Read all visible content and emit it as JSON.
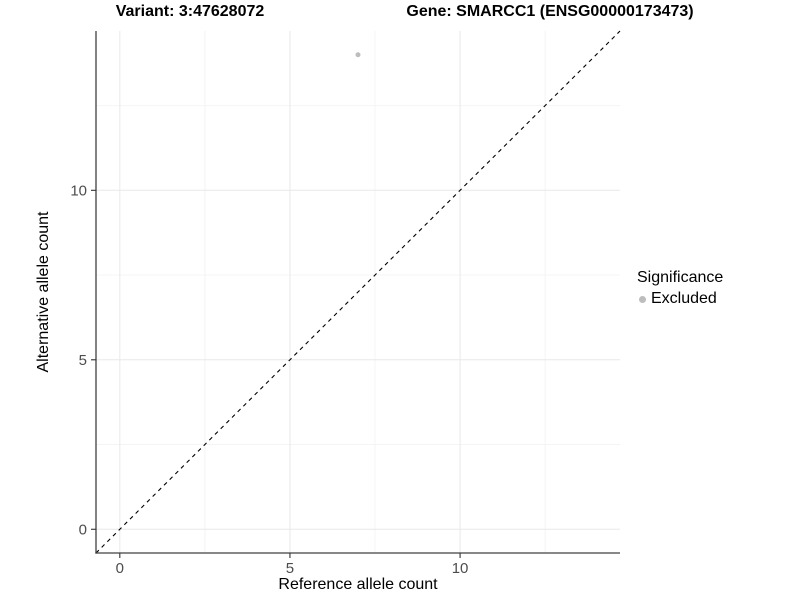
{
  "chart_data": {
    "type": "scatter",
    "titles": {
      "left": "Variant: 3:47628072",
      "right": "Gene: SMARCC1 (ENSG00000173473)"
    },
    "xlabel": "Reference allele count",
    "ylabel": "Alternative allele count",
    "xlim": [
      -0.7,
      14.7
    ],
    "ylim": [
      -0.7,
      14.7
    ],
    "x_ticks": {
      "major": [
        0,
        5,
        10
      ],
      "minor": [
        2.5,
        7.5,
        12.5
      ]
    },
    "y_ticks": {
      "major": [
        0,
        5,
        10
      ],
      "minor": [
        2.5,
        7.5,
        12.5
      ]
    },
    "grid": "major+minor",
    "reference_line": {
      "kind": "identity y=x",
      "dashed": true
    },
    "series": [
      {
        "name": "Excluded",
        "color": "#bdbdbd",
        "points": [
          [
            7,
            14
          ]
        ]
      }
    ],
    "legend": {
      "title": "Significance",
      "position": "right",
      "items": [
        {
          "label": "Excluded",
          "color": "#bdbdbd"
        }
      ]
    }
  },
  "colors": {
    "background": "#ffffff",
    "grid_major": "#e8e8e8",
    "grid_minor": "#f4f4f4",
    "axis_line": "#404040",
    "tick_mark": "#333333",
    "tick_label": "#4d4d4d",
    "text": "#000000",
    "point": "#bdbdbd",
    "reference_line": "#000000"
  }
}
